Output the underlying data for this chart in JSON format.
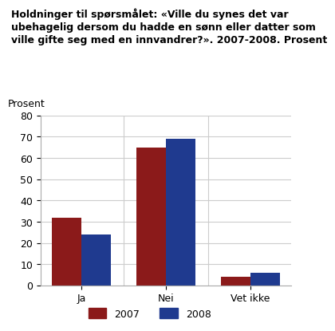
{
  "title_line1": "Holdninger til spørsmålet: «Ville du synes det var",
  "title_line2": "ubehagelig dersom du hadde en sønn eller datter som",
  "title_line3": "ville gifte seg med en innvandrer?». 2007-2008. Prosent",
  "prosent_label": "Prosent",
  "categories": [
    "Ja",
    "Nei",
    "Vet ikke"
  ],
  "series": {
    "2007": [
      32,
      65,
      4
    ],
    "2008": [
      24,
      69,
      6
    ]
  },
  "colors": {
    "2007": "#8B1A1A",
    "2008": "#1F3A8F"
  },
  "ylim": [
    0,
    80
  ],
  "yticks": [
    0,
    10,
    20,
    30,
    40,
    50,
    60,
    70,
    80
  ],
  "bar_width": 0.35,
  "background_color": "#ffffff",
  "grid_color": "#cccccc",
  "title_fontsize": 9.0,
  "axis_fontsize": 9,
  "legend_fontsize": 9
}
